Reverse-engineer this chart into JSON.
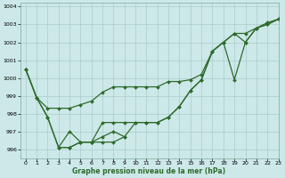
{
  "bg_color": "#cde8e8",
  "grid_color": "#aacccc",
  "line_color": "#2d6b2d",
  "xlabel": "Graphe pression niveau de la mer (hPa)",
  "xlim": [
    -0.5,
    23
  ],
  "ylim": [
    995.5,
    1004.2
  ],
  "yticks": [
    996,
    997,
    998,
    999,
    1000,
    1001,
    1002,
    1003,
    1004
  ],
  "xticks": [
    0,
    1,
    2,
    3,
    4,
    5,
    6,
    7,
    8,
    9,
    10,
    11,
    12,
    13,
    14,
    15,
    16,
    17,
    18,
    19,
    20,
    21,
    22,
    23
  ],
  "series_upper": {
    "x": [
      0,
      1,
      2,
      3,
      4,
      5,
      6,
      7,
      8,
      9,
      10,
      11,
      12,
      13,
      14,
      15,
      16,
      17,
      18,
      19,
      20,
      21,
      22,
      23
    ],
    "y": [
      1000.5,
      998.9,
      998.3,
      998.3,
      998.3,
      998.5,
      998.7,
      999.2,
      999.5,
      999.5,
      999.5,
      999.5,
      999.5,
      999.8,
      999.8,
      999.9,
      1000.2,
      1001.5,
      1002.0,
      1002.5,
      1002.5,
      1002.8,
      1003.1,
      1003.3
    ]
  },
  "series_main": {
    "x": [
      0,
      1,
      2,
      3,
      4,
      5,
      6,
      7,
      8,
      9,
      10,
      11,
      12,
      13,
      14,
      15,
      16,
      17,
      18,
      19,
      20,
      21,
      22,
      23
    ],
    "y": [
      1000.5,
      998.9,
      997.8,
      996.1,
      996.1,
      996.4,
      996.4,
      997.5,
      997.5,
      997.5,
      997.5,
      997.5,
      997.5,
      997.8,
      998.4,
      999.3,
      999.9,
      1001.5,
      1002.0,
      1002.5,
      1002.0,
      1002.8,
      1003.0,
      1003.3
    ]
  },
  "series_low": {
    "x": [
      0,
      1,
      2,
      3,
      4,
      5,
      6,
      7,
      8,
      9,
      10,
      11,
      12,
      13,
      14,
      15,
      16,
      17,
      18,
      19,
      20,
      21,
      22,
      23
    ],
    "y": [
      1000.5,
      998.9,
      997.8,
      996.1,
      996.1,
      996.4,
      996.4,
      996.4,
      996.4,
      996.7,
      997.5,
      997.5,
      997.5,
      997.8,
      998.4,
      999.3,
      999.9,
      1001.5,
      1002.0,
      999.9,
      1002.0,
      1002.8,
      1003.0,
      1003.3
    ]
  },
  "series_zigzag": {
    "x": [
      3,
      4,
      5,
      6,
      7,
      8,
      9
    ],
    "y": [
      996.1,
      997.0,
      996.4,
      996.4,
      996.7,
      997.0,
      996.7
    ]
  }
}
